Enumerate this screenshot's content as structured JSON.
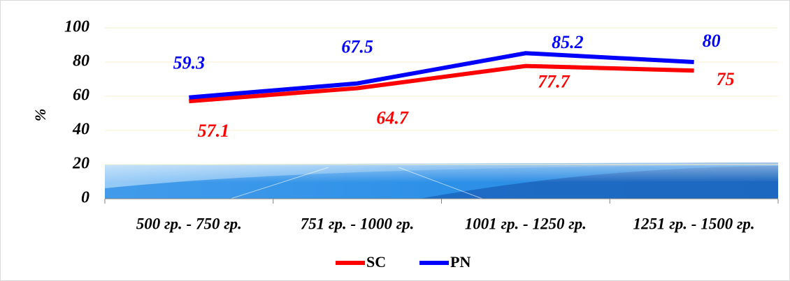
{
  "chart_data": {
    "type": "line",
    "categories": [
      "500 гр. - 750 гр.",
      "751 гр. - 1000 гр.",
      "1001 гр. - 1250 гр.",
      "1251 гр. - 1500 гр."
    ],
    "series": [
      {
        "name": "SC",
        "color": "#ff0000",
        "values": [
          57.1,
          64.7,
          77.7,
          75
        ]
      },
      {
        "name": "PN",
        "color": "#0000ff",
        "values": [
          59.3,
          67.5,
          85.2,
          80
        ]
      }
    ],
    "y_label": "%",
    "ylim": [
      0,
      100
    ],
    "yticks": [
      0,
      20,
      40,
      60,
      80,
      100
    ],
    "grid": true,
    "legend": "bottom"
  }
}
